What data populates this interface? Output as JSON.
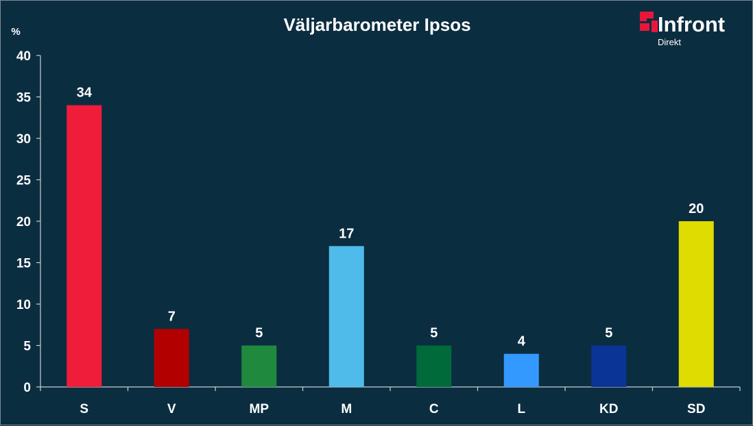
{
  "brand": {
    "name": "Infront",
    "sub": "Direkt",
    "accent": "#e8173a"
  },
  "chart_data": {
    "type": "bar",
    "title": "Väljarbarometer Ipsos",
    "ylabel": "%",
    "xlabel": "",
    "ylim": [
      0,
      40
    ],
    "yticks": [
      0,
      5,
      10,
      15,
      20,
      25,
      30,
      35,
      40
    ],
    "grid": false,
    "legend": "none",
    "categories": [
      "S",
      "V",
      "MP",
      "M",
      "C",
      "L",
      "KD",
      "SD"
    ],
    "values": [
      34,
      7,
      5,
      17,
      5,
      4,
      5,
      20
    ],
    "colors": [
      "#ef1c3a",
      "#b20000",
      "#1f8a3e",
      "#4fbbea",
      "#006a3a",
      "#3399ff",
      "#0a3596",
      "#dedc00"
    ]
  }
}
